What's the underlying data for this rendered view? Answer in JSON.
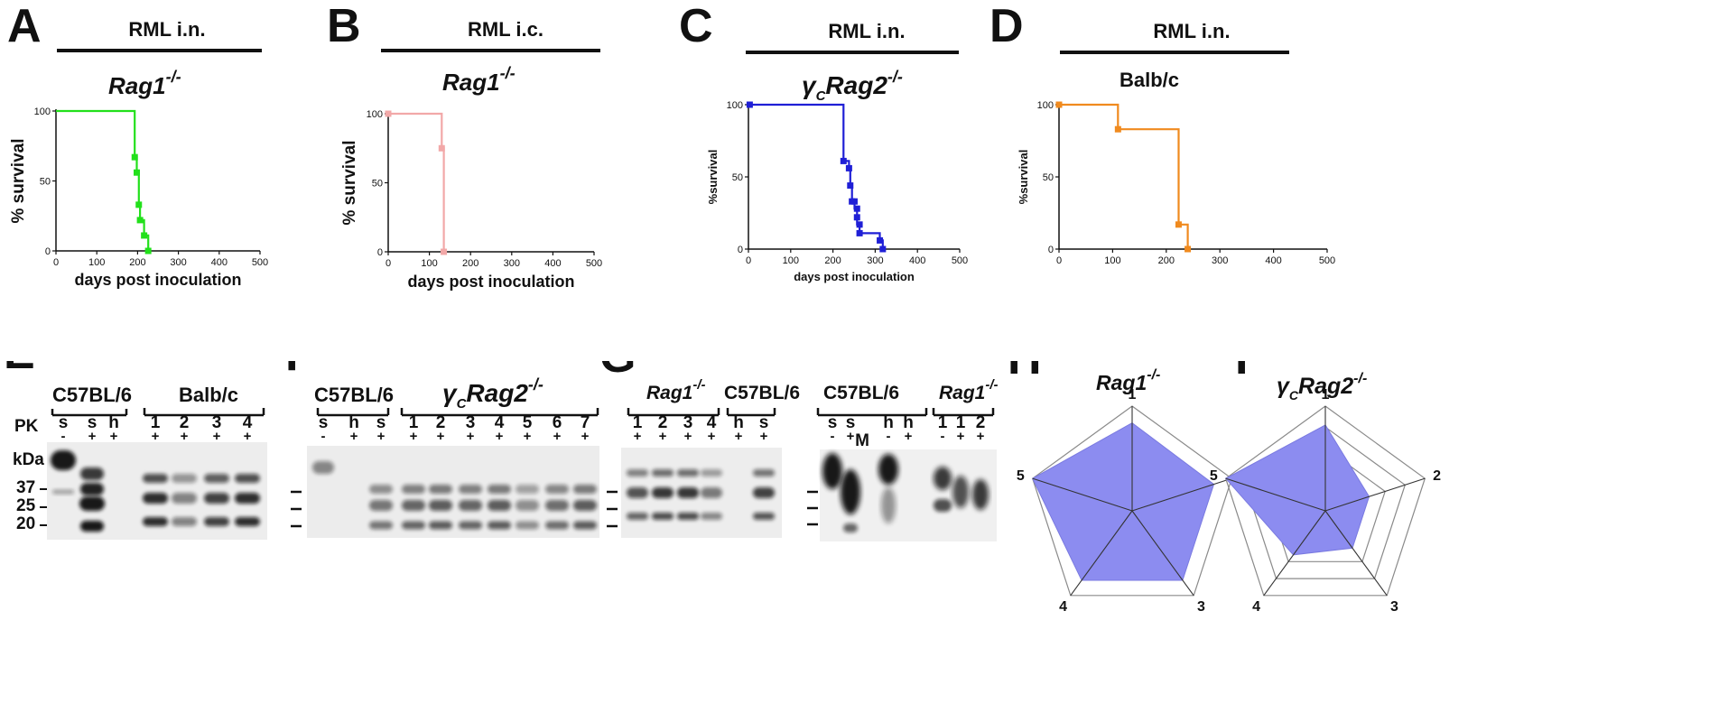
{
  "panels": {
    "A": {
      "letter": "A",
      "inoculation": "RML  i.n.",
      "genotype_base": "Rag1",
      "genotype_sup": "-/-",
      "chart_data": {
        "type": "line",
        "step": true,
        "color": "#22e01b",
        "xlabel": "days post inoculation",
        "ylabel": "% survival",
        "xlim": [
          0,
          500
        ],
        "ylim": [
          0,
          100
        ],
        "xticks": [
          0,
          100,
          200,
          300,
          400,
          500
        ],
        "yticks": [
          0,
          50,
          100
        ],
        "series": [
          {
            "points": [
              [
                0,
                100
              ],
              [
                193,
                100
              ],
              [
                193,
                67
              ],
              [
                198,
                67
              ],
              [
                198,
                56
              ],
              [
                203,
                56
              ],
              [
                203,
                33
              ],
              [
                206,
                33
              ],
              [
                206,
                22
              ],
              [
                216,
                22
              ],
              [
                216,
                11
              ],
              [
                226,
                11
              ],
              [
                226,
                0
              ]
            ],
            "markers": [
              [
                193,
                67
              ],
              [
                198,
                56
              ],
              [
                203,
                33
              ],
              [
                206,
                22
              ],
              [
                216,
                11
              ],
              [
                226,
                0
              ]
            ]
          }
        ]
      }
    },
    "B": {
      "letter": "B",
      "inoculation": "RML i.c.",
      "genotype_base": "Rag1",
      "genotype_sup": "-/-",
      "chart_data": {
        "type": "line",
        "step": true,
        "color": "#f2a8a8",
        "xlabel": "days post inoculation",
        "ylabel": "% survival",
        "xlim": [
          0,
          500
        ],
        "ylim": [
          0,
          100
        ],
        "xticks": [
          0,
          100,
          200,
          300,
          400,
          500
        ],
        "yticks": [
          0,
          50,
          100
        ],
        "series": [
          {
            "points": [
              [
                0,
                100
              ],
              [
                130,
                100
              ],
              [
                130,
                75
              ],
              [
                135,
                75
              ],
              [
                135,
                0
              ]
            ],
            "markers": [
              [
                0,
                100
              ],
              [
                130,
                75
              ],
              [
                135,
                0
              ]
            ]
          }
        ]
      }
    },
    "C": {
      "letter": "C",
      "inoculation": "RML  i.n.",
      "genotype_gamma": "γ",
      "genotype_gamma_sub": "C",
      "genotype_base": "Rag2",
      "genotype_sup": "-/-",
      "chart_data": {
        "type": "line",
        "step": true,
        "color": "#1f1fd6",
        "xlabel": "days post inoculation",
        "ylabel": "%survival",
        "xlim": [
          0,
          500
        ],
        "ylim": [
          0,
          100
        ],
        "xticks": [
          0,
          100,
          200,
          300,
          400,
          500
        ],
        "yticks": [
          0,
          50,
          100
        ],
        "series": [
          {
            "points": [
              [
                0,
                100
              ],
              [
                225,
                100
              ],
              [
                225,
                61
              ],
              [
                238,
                61
              ],
              [
                238,
                56
              ],
              [
                241,
                56
              ],
              [
                241,
                44
              ],
              [
                245,
                44
              ],
              [
                245,
                33
              ],
              [
                251,
                33
              ],
              [
                251,
                28
              ],
              [
                257,
                28
              ],
              [
                257,
                17
              ],
              [
                263,
                17
              ],
              [
                263,
                11
              ],
              [
                311,
                11
              ],
              [
                311,
                6
              ],
              [
                318,
                6
              ],
              [
                318,
                0
              ]
            ],
            "markers": [
              [
                3,
                100
              ],
              [
                225,
                61
              ],
              [
                238,
                56
              ],
              [
                241,
                44
              ],
              [
                245,
                33
              ],
              [
                251,
                33
              ],
              [
                257,
                28
              ],
              [
                257,
                22
              ],
              [
                263,
                17
              ],
              [
                263,
                11
              ],
              [
                311,
                6
              ],
              [
                318,
                0
              ]
            ]
          }
        ]
      }
    },
    "D": {
      "letter": "D",
      "inoculation": "RML  i.n.",
      "genotype_strain": "Balb/c",
      "chart_data": {
        "type": "line",
        "step": true,
        "color": "#f08a1e",
        "xlabel": "",
        "ylabel": "%survival",
        "xlim": [
          0,
          500
        ],
        "ylim": [
          0,
          100
        ],
        "xticks": [
          0,
          100,
          200,
          300,
          400,
          500
        ],
        "yticks": [
          0,
          50,
          100
        ],
        "series": [
          {
            "points": [
              [
                0,
                100
              ],
              [
                110,
                100
              ],
              [
                110,
                83
              ],
              [
                223,
                83
              ],
              [
                223,
                17
              ],
              [
                240,
                17
              ],
              [
                240,
                0
              ]
            ],
            "markers": [
              [
                0,
                100
              ],
              [
                110,
                83
              ],
              [
                223,
                17
              ],
              [
                240,
                0
              ]
            ]
          }
        ]
      }
    },
    "E": {
      "letter": "E",
      "pk_label": "PK",
      "kda_label": "kDa",
      "markers": [
        "37",
        "25",
        "20"
      ],
      "groups": [
        {
          "label": "C57BL/6"
        },
        {
          "label": "Balb/c"
        }
      ],
      "lanes": [
        "s",
        "s",
        "h",
        "1",
        "2",
        "3",
        "4"
      ],
      "pk": [
        "-",
        "+",
        "+",
        "+",
        "+",
        "+",
        "+"
      ]
    },
    "F": {
      "letter": "F",
      "groups": [
        {
          "label": "C57BL/6"
        },
        {
          "gamma": "γ",
          "gamma_sub": "C",
          "base": "Rag2",
          "sup": "-/-"
        }
      ],
      "lanes": [
        "s",
        "h",
        "s",
        "1",
        "2",
        "3",
        "4",
        "5",
        "6",
        "7"
      ],
      "pk": [
        "-",
        "+",
        "+",
        "+",
        "+",
        "+",
        "+",
        "+",
        "+",
        "+"
      ]
    },
    "G": {
      "letter": "G",
      "left": {
        "groups": [
          {
            "base": "Rag1",
            "sup": "-/-"
          },
          {
            "label": "C57BL/6"
          }
        ],
        "lanes": [
          "1",
          "2",
          "3",
          "4",
          "h",
          "s"
        ],
        "pk": [
          "+",
          "+",
          "+",
          "+",
          "+",
          "+"
        ]
      },
      "right": {
        "groups": [
          {
            "label": "C57BL/6"
          },
          {
            "base": "Rag1",
            "sup": "-/-"
          }
        ],
        "lanes": [
          "s",
          "s",
          "h",
          "h",
          "1",
          "1",
          "2"
        ],
        "pk": [
          "-",
          "+",
          "-",
          "+",
          "-",
          "+",
          "+"
        ],
        "marker_label": "M"
      }
    },
    "H": {
      "letter": "H",
      "genotype_base": "Rag1",
      "genotype_sup": "-/-",
      "chart_data": {
        "type": "radar",
        "axes": [
          "1",
          "2",
          "3",
          "4",
          "5"
        ],
        "max": 5,
        "values": [
          4.2,
          4.1,
          4.1,
          4.1,
          5
        ],
        "fill": "#8c8cf0"
      }
    },
    "I": {
      "letter": "I",
      "genotype_gamma": "γ",
      "genotype_gamma_sub": "C",
      "genotype_base": "Rag2",
      "genotype_sup": "-/-",
      "chart_data": {
        "type": "radar",
        "axes": [
          "1",
          "2",
          "3",
          "4",
          "5"
        ],
        "max": 5,
        "values": [
          4.1,
          2.2,
          2.2,
          2.6,
          5
        ],
        "fill": "#8c8cf0"
      }
    }
  }
}
